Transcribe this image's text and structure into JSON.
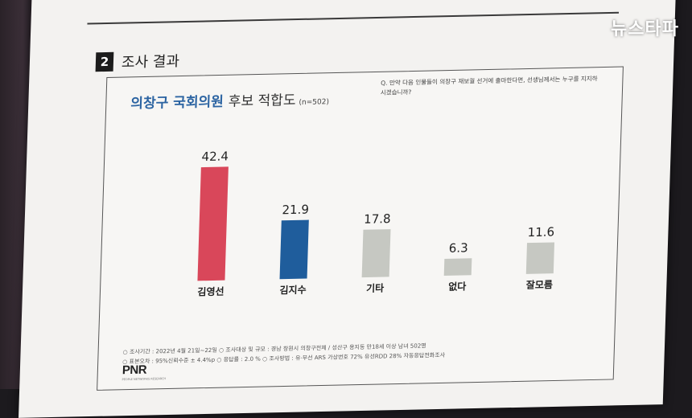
{
  "watermark": "뉴스타파",
  "section": {
    "number": "2",
    "title": "조사 결과"
  },
  "chart": {
    "title_blue": "의창구 국회의원",
    "title_dark": "후보 적합도",
    "sample": "(n=502)",
    "question": "Q. 만약 다음 인물들이 의창구 재보궐 선거에 출마한다면, 선생님께서는 누구를 지지하시겠습니까?"
  },
  "chart_data": {
    "type": "bar",
    "categories": [
      "김영선",
      "김지수",
      "기타",
      "없다",
      "잘모름"
    ],
    "values": [
      42.4,
      21.9,
      17.8,
      6.3,
      11.6
    ],
    "colors": [
      "#d9475a",
      "#1f5d9c",
      "#c6c8c2",
      "#c6c8c2",
      "#c6c8c2"
    ],
    "title": "의창구 국회의원 후보 적합도",
    "xlabel": "",
    "ylabel": "",
    "ylim": [
      0,
      45
    ]
  },
  "footer": {
    "line1": "○ 조사기간 : 2022년 4월 21일~22일   ○ 조사대상 및 규모 : 경남 창원시 의창구전체 / 성산구 용지동 만18세 이상 남녀 502명",
    "line2": "○ 표본오차 : 95%신뢰수준 ± 4.4%p   ○ 응답률 : 2.0 %   ○ 조사방법 : 유·무선 ARS 가상번호 72% 유선RDD 28% 자동응답전화조사"
  },
  "logo": {
    "name": "PNR",
    "sub": "PEOPLE NETWORKS RESEARCH"
  }
}
